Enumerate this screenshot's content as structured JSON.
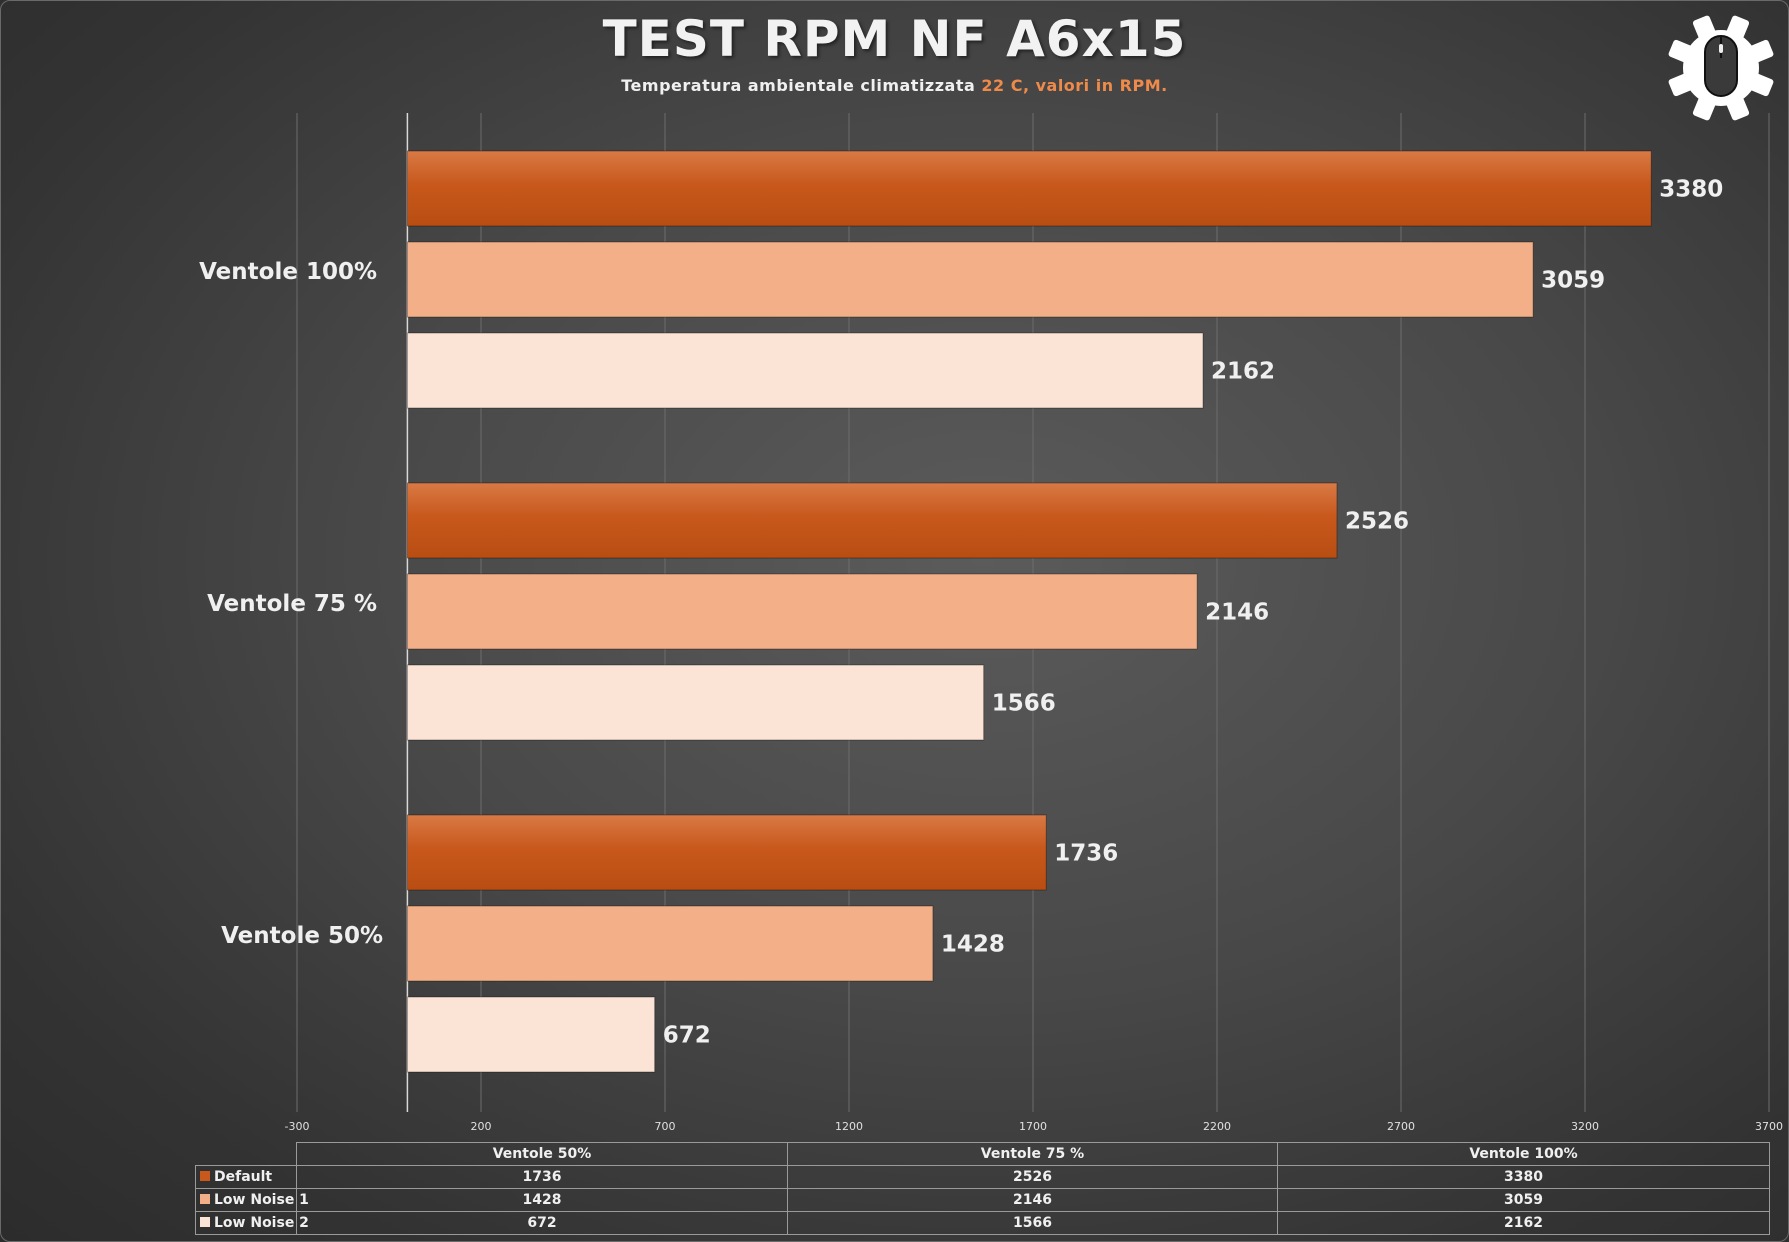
{
  "header": {
    "title": "TEST RPM NF A6x15",
    "subtitle_main": "Temperatura ambientale climatizzata ",
    "subtitle_accent": "22 C, valori in RPM."
  },
  "logo": {
    "icon": "gear-mouse-logo-icon"
  },
  "colors": {
    "Default": "#c8581c",
    "Low Noise 1": "#f3b088",
    "Low Noise 2": "#fbe3d5",
    "accent": "#ee8a4a"
  },
  "chart_data": {
    "type": "bar",
    "orientation": "horizontal",
    "categories": [
      "Ventole 100%",
      "Ventole 75 %",
      "Ventole 50%"
    ],
    "series": [
      {
        "name": "Default",
        "values": [
          3380,
          2526,
          1736
        ]
      },
      {
        "name": "Low Noise 1",
        "values": [
          3059,
          2146,
          1428
        ]
      },
      {
        "name": "Low Noise 2",
        "values": [
          2162,
          1566,
          672
        ]
      }
    ],
    "xlim": [
      -300,
      3700
    ],
    "xticks": [
      -300,
      200,
      700,
      1200,
      1700,
      2200,
      2700,
      3200,
      3700
    ],
    "grid": true,
    "data_labels": true
  },
  "table": {
    "columns": [
      "Ventole 50%",
      "Ventole 75 %",
      "Ventole 100%"
    ],
    "rows": [
      {
        "series": "Default",
        "cells": [
          "1736",
          "2526",
          "3380"
        ]
      },
      {
        "series": "Low Noise 1",
        "cells": [
          "1428",
          "2146",
          "3059"
        ]
      },
      {
        "series": "Low Noise 2",
        "cells": [
          "672",
          "1566",
          "2162"
        ]
      }
    ]
  }
}
